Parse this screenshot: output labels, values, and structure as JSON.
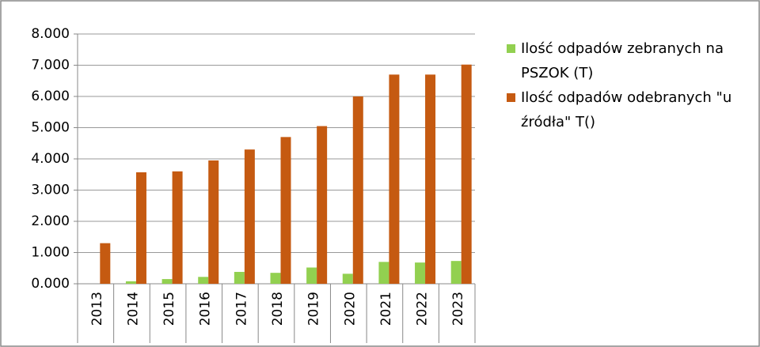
{
  "chart_data": {
    "type": "bar",
    "categories": [
      "2013",
      "2014",
      "2015",
      "2016",
      "2017",
      "2018",
      "2019",
      "2020",
      "2021",
      "2022",
      "2023"
    ],
    "series": [
      {
        "name": "Ilość odpadów zebranych na PSZOK (T)",
        "color": "#92d050",
        "values": [
          0,
          80,
          150,
          220,
          380,
          350,
          520,
          320,
          700,
          680,
          730
        ]
      },
      {
        "name": "Ilość odpadów odebranych \"u źródła\" T()",
        "color": "#c55a11",
        "values": [
          1300,
          3570,
          3600,
          3950,
          4300,
          4700,
          5050,
          6000,
          6700,
          6700,
          7020
        ]
      }
    ],
    "ylim": [
      0,
      8000
    ],
    "yticks": [
      {
        "value": 0,
        "label": "0.000"
      },
      {
        "value": 1000,
        "label": "1.000"
      },
      {
        "value": 2000,
        "label": "2.000"
      },
      {
        "value": 3000,
        "label": "3.000"
      },
      {
        "value": 4000,
        "label": "4.000"
      },
      {
        "value": 5000,
        "label": "5.000"
      },
      {
        "value": 6000,
        "label": "6.000"
      },
      {
        "value": 7000,
        "label": "7.000"
      },
      {
        "value": 8000,
        "label": "8.000"
      }
    ],
    "grid": true,
    "legend": "right"
  }
}
